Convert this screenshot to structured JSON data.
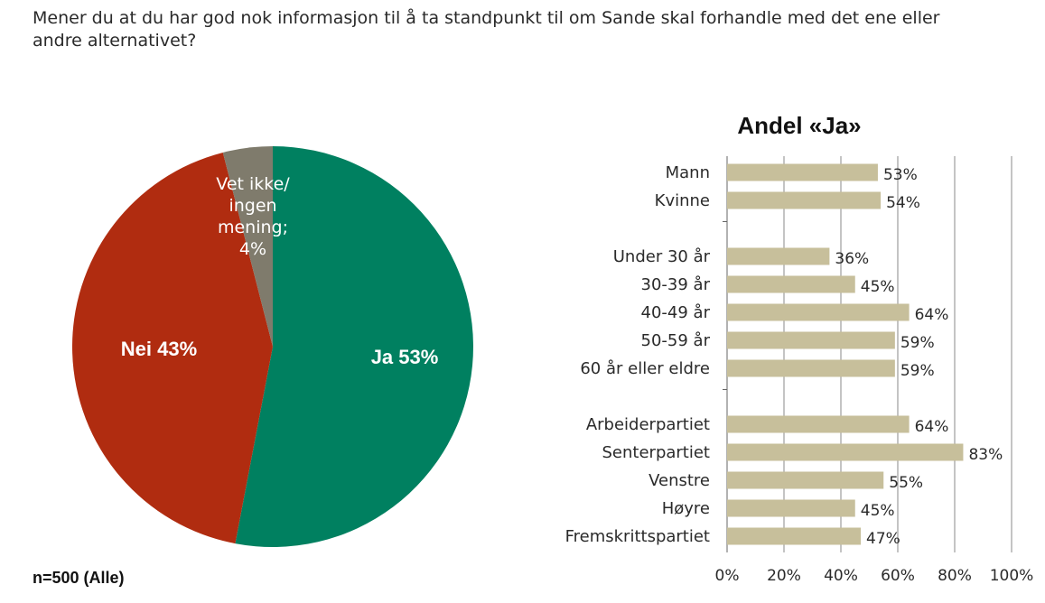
{
  "question": {
    "line1": "Mener du at du har god nok informasjon til å ta standpunkt til om Sande skal forhandle med det ene eller",
    "line2": "andre alternativet?"
  },
  "sample_note": "n=500 (Alle)",
  "colors": {
    "ja": "#008060",
    "nei": "#B02C10",
    "vet_ikke": "#7F7B6C",
    "bar": "#C7BF9B",
    "grid": "#888888"
  },
  "chart_data": [
    {
      "type": "pie",
      "slices": [
        {
          "label": "Ja 53%",
          "name": "Ja",
          "value": 53,
          "color_key": "ja"
        },
        {
          "label": "Nei 43%",
          "name": "Nei",
          "value": 43,
          "color_key": "nei"
        },
        {
          "label_lines": [
            "Vet ikke/",
            "ingen",
            "mening;",
            "4%"
          ],
          "name": "Vet ikke/ ingen mening",
          "value": 4,
          "color_key": "vet_ikke"
        }
      ]
    },
    {
      "type": "bar",
      "orientation": "horizontal",
      "title": "Andel «Ja»",
      "xlim": [
        0,
        100
      ],
      "ticks": [
        "0%",
        "20%",
        "40%",
        "60%",
        "80%",
        "100%"
      ],
      "grid": true,
      "groups": [
        {
          "categories": [
            "Mann",
            "Kvinne"
          ],
          "values": [
            53,
            54
          ],
          "labels": [
            "53%",
            "54%"
          ]
        },
        {
          "categories": [
            "Under 30 år",
            "30-39 år",
            "40-49 år",
            "50-59 år",
            "60 år eller eldre"
          ],
          "values": [
            36,
            45,
            64,
            59,
            59
          ],
          "labels": [
            "36%",
            "45%",
            "64%",
            "59%",
            "59%"
          ]
        },
        {
          "categories": [
            "Arbeiderpartiet",
            "Senterpartiet",
            "Venstre",
            "Høyre",
            "Fremskrittspartiet"
          ],
          "values": [
            64,
            83,
            55,
            45,
            47
          ],
          "labels": [
            "64%",
            "83%",
            "55%",
            "45%",
            "47%"
          ]
        }
      ]
    }
  ]
}
